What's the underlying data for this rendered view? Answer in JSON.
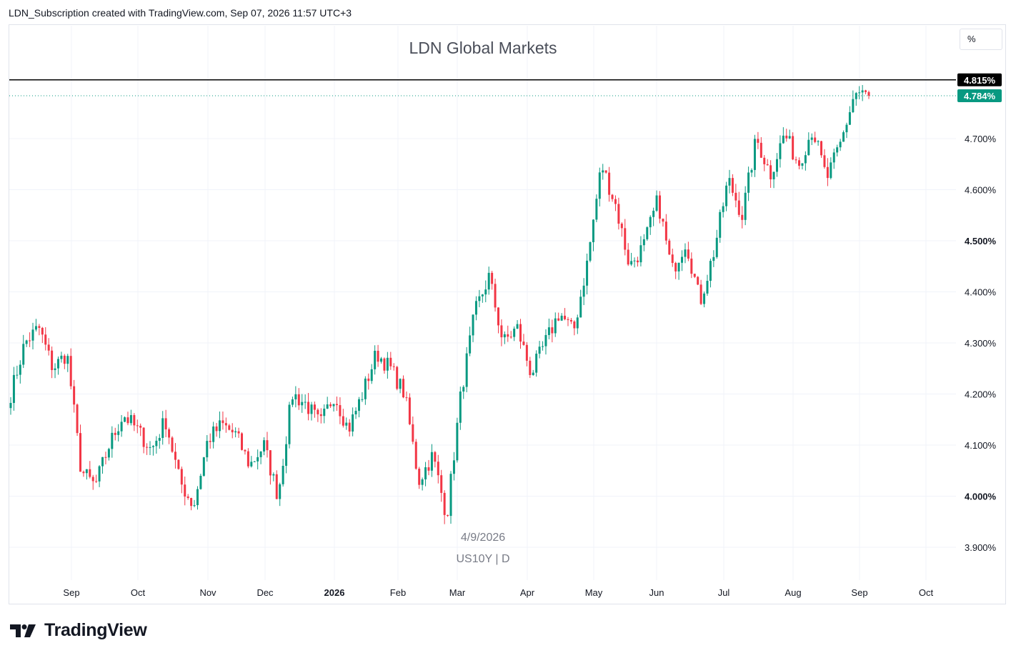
{
  "header": {
    "caption": "LDN_Subscription created with TradingView.com, Sep 07, 2026 11:57 UTC+3"
  },
  "brand": {
    "name": "TradingView",
    "icon": "tradingview-logo-icon"
  },
  "scale_button": {
    "label": "%"
  },
  "chart_data": {
    "type": "candlestick",
    "title": "LDN Global Markets",
    "symbol": "US10Y | D",
    "hover_date": "4/9/2026",
    "y_ticks": [
      "3.900%",
      "4.000%",
      "4.100%",
      "4.200%",
      "4.300%",
      "4.400%",
      "4.500%",
      "4.600%",
      "4.700%"
    ],
    "y_tick_values": [
      3.9,
      4.0,
      4.1,
      4.2,
      4.3,
      4.4,
      4.5,
      4.6,
      4.7
    ],
    "bold_y_ticks": [
      "4.000%",
      "4.500%"
    ],
    "ylim": [
      3.86,
      4.99
    ],
    "x_ticks": [
      "Sep",
      "Oct",
      "Nov",
      "Dec",
      "2026",
      "Feb",
      "Mar",
      "Apr",
      "May",
      "Jun",
      "Jul",
      "Aug",
      "Sep",
      "Oct"
    ],
    "bold_x_ticks": [
      "2026"
    ],
    "current_price": {
      "label": "4.784%",
      "value": 4.784,
      "color": "#089981"
    },
    "high_line": {
      "label": "4.815%",
      "value": 4.815,
      "color": "#000000"
    },
    "colors": {
      "up": "#089981",
      "down": "#f23645",
      "grid": "#f0f3fa"
    },
    "anchors_close": [
      4.2,
      4.3,
      4.33,
      4.25,
      4.28,
      4.05,
      4.02,
      4.1,
      4.16,
      4.13,
      4.09,
      4.15,
      4.03,
      3.98,
      4.11,
      4.14,
      4.12,
      4.06,
      4.1,
      4.0,
      4.2,
      4.18,
      4.14,
      4.2,
      4.13,
      4.2,
      4.28,
      4.25,
      4.2,
      4.03,
      4.08,
      3.96,
      4.2,
      4.36,
      4.43,
      4.3,
      4.33,
      4.24,
      4.3,
      4.36,
      4.32,
      4.46,
      4.65,
      4.57,
      4.45,
      4.49,
      4.58,
      4.44,
      4.5,
      4.38,
      4.48,
      4.62,
      4.55,
      4.7,
      4.63,
      4.71,
      4.65,
      4.72,
      4.62,
      4.69,
      4.79,
      4.784
    ]
  }
}
